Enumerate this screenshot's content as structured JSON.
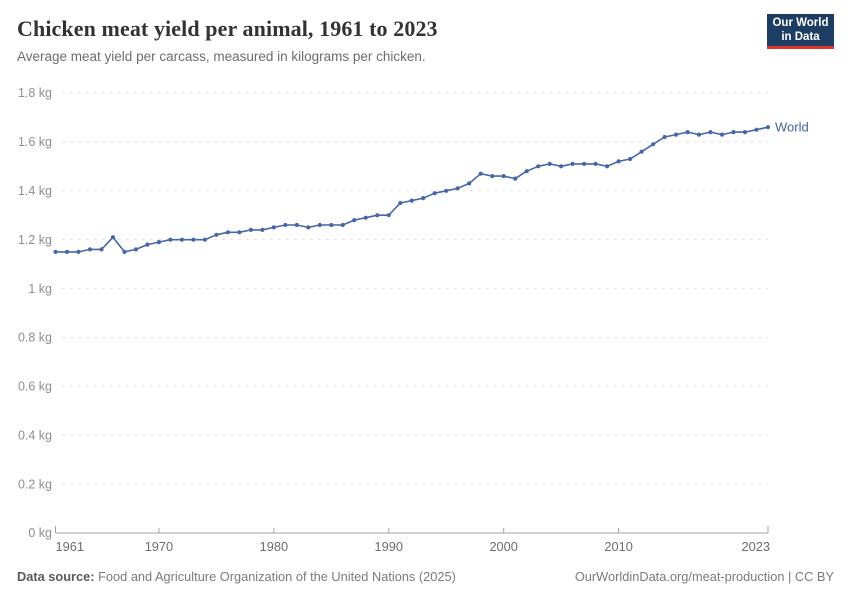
{
  "header": {
    "title": "Chicken meat yield per animal, 1961 to 2023",
    "subtitle": "Average meat yield per carcass, measured in kilograms per chicken.",
    "logo": {
      "line1": "Our World",
      "line2": "in Data",
      "bg_color": "#1d3d63",
      "bar_color": "#e0352c"
    }
  },
  "chart_data": {
    "type": "line",
    "title": "Chicken meat yield per animal, 1961 to 2023",
    "xlabel": "",
    "ylabel": "",
    "unit": "kg",
    "grid": "horizontal-dashed",
    "legend_position": "end-of-line",
    "ylim": [
      0,
      1.8
    ],
    "yticks": [
      0,
      0.2,
      0.4,
      0.6,
      0.8,
      1,
      1.2,
      1.4,
      1.6,
      1.8
    ],
    "ytick_labels": [
      "0 kg",
      "0.2 kg",
      "0.4 kg",
      "0.6 kg",
      "0.8 kg",
      "1 kg",
      "1.2 kg",
      "1.4 kg",
      "1.6 kg",
      "1.8 kg"
    ],
    "xticks": [
      1961,
      1970,
      1980,
      1990,
      2000,
      2010,
      2023
    ],
    "x": [
      1961,
      1962,
      1963,
      1964,
      1965,
      1966,
      1967,
      1968,
      1969,
      1970,
      1971,
      1972,
      1973,
      1974,
      1975,
      1976,
      1977,
      1978,
      1979,
      1980,
      1981,
      1982,
      1983,
      1984,
      1985,
      1986,
      1987,
      1988,
      1989,
      1990,
      1991,
      1992,
      1993,
      1994,
      1995,
      1996,
      1997,
      1998,
      1999,
      2000,
      2001,
      2002,
      2003,
      2004,
      2005,
      2006,
      2007,
      2008,
      2009,
      2010,
      2011,
      2012,
      2013,
      2014,
      2015,
      2016,
      2017,
      2018,
      2019,
      2020,
      2021,
      2022,
      2023
    ],
    "series": [
      {
        "name": "World",
        "color": "#4767a4",
        "label_color": "#41629b",
        "values": [
          1.15,
          1.15,
          1.15,
          1.16,
          1.16,
          1.21,
          1.15,
          1.16,
          1.18,
          1.19,
          1.2,
          1.2,
          1.2,
          1.2,
          1.22,
          1.23,
          1.23,
          1.24,
          1.24,
          1.25,
          1.26,
          1.26,
          1.25,
          1.26,
          1.26,
          1.26,
          1.28,
          1.29,
          1.3,
          1.3,
          1.35,
          1.36,
          1.37,
          1.39,
          1.4,
          1.41,
          1.43,
          1.47,
          1.46,
          1.46,
          1.45,
          1.48,
          1.5,
          1.51,
          1.5,
          1.51,
          1.51,
          1.51,
          1.5,
          1.52,
          1.53,
          1.56,
          1.59,
          1.62,
          1.63,
          1.64,
          1.63,
          1.64,
          1.63,
          1.64,
          1.64,
          1.65,
          1.66
        ]
      }
    ],
    "style": {
      "grid_color": "#e0e0e0",
      "axis_color": "#a3a3a3",
      "ytick_label_color": "#8f8f8f",
      "xtick_label_color": "#6e6e6e"
    }
  },
  "footer": {
    "datasource_label": "Data source:",
    "datasource": "Food and Agriculture Organization of the United Nations (2025)",
    "url": "OurWorldinData.org/meat-production",
    "separator": "|",
    "license": "CC BY"
  }
}
